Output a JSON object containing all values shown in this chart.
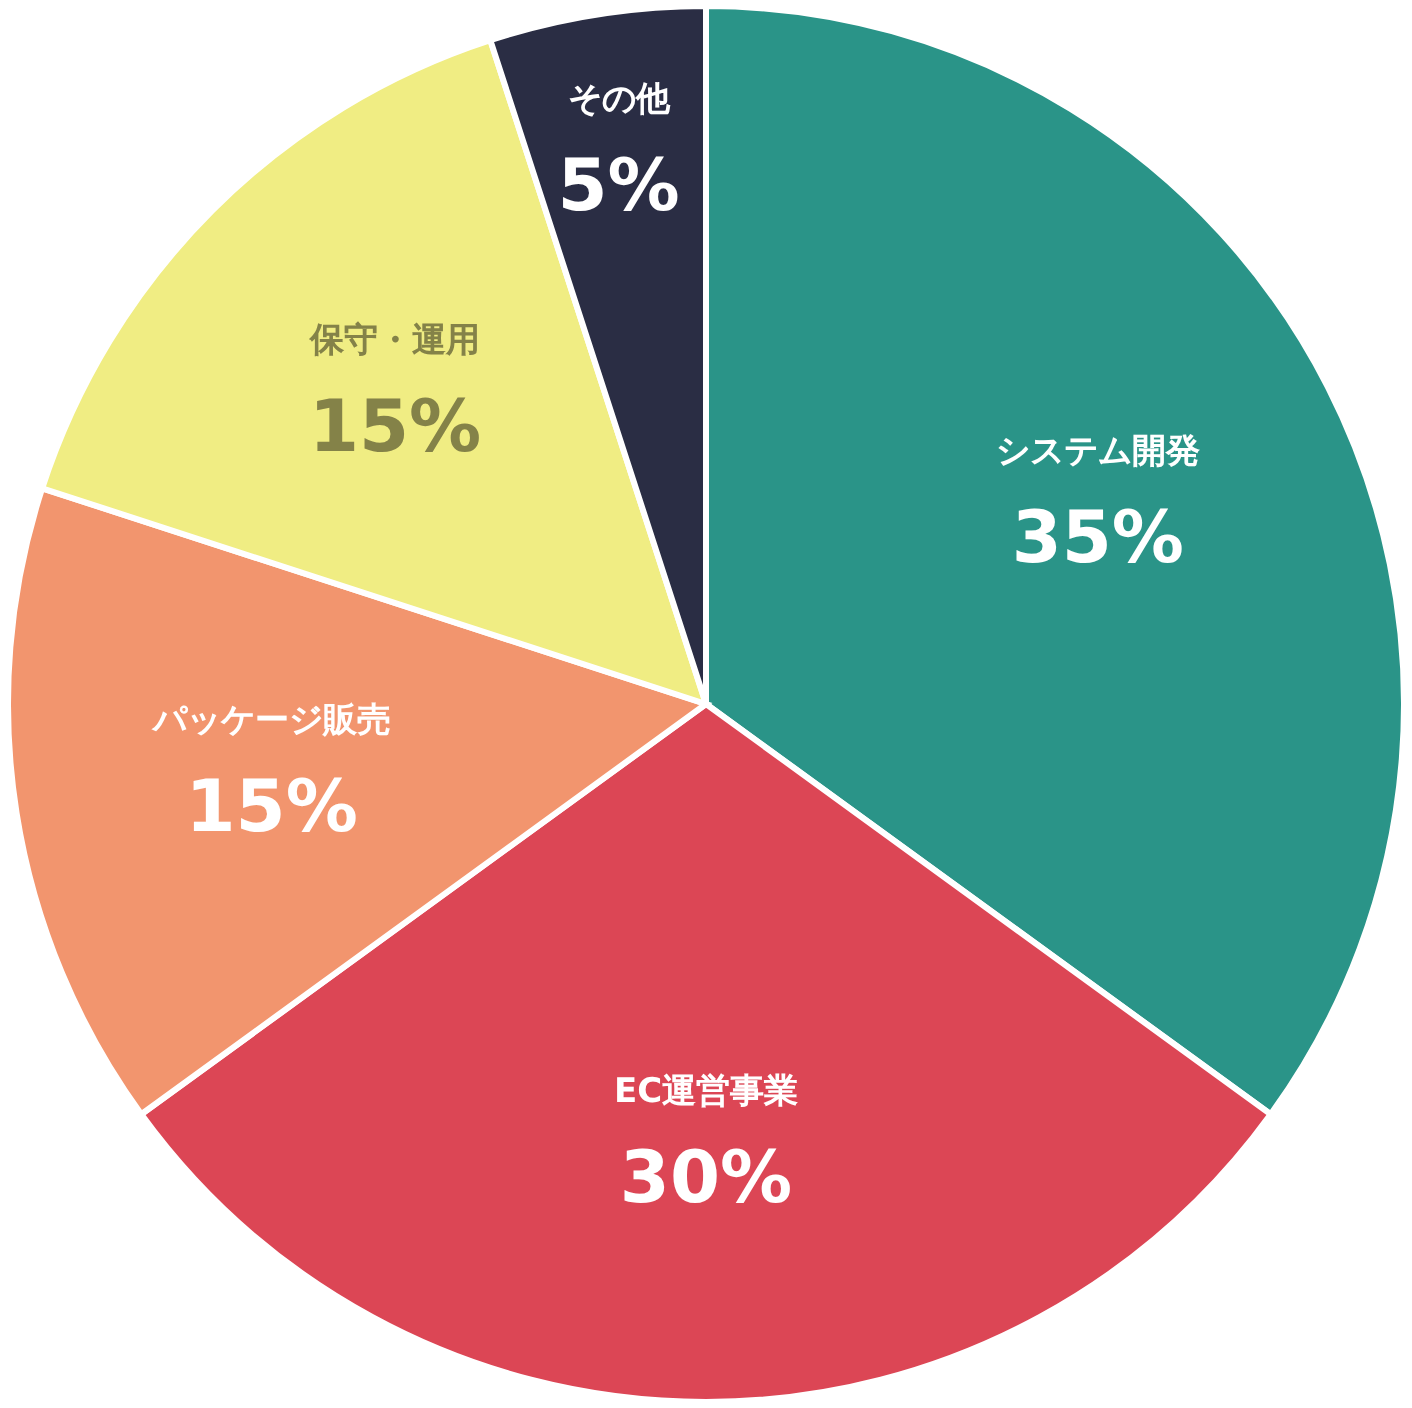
{
  "chart_data": {
    "type": "pie",
    "categories": [
      "システム開発",
      "EC運営事業",
      "パッケージ販売",
      "保守・運用",
      "その他"
    ],
    "values": [
      35,
      30,
      15,
      15,
      5
    ],
    "value_labels": [
      "35%",
      "30%",
      "15%",
      "15%",
      "5%"
    ],
    "colors": [
      "#2a9488",
      "#dc4655",
      "#f2956e",
      "#f0ed83",
      "#2a2d44"
    ]
  }
}
